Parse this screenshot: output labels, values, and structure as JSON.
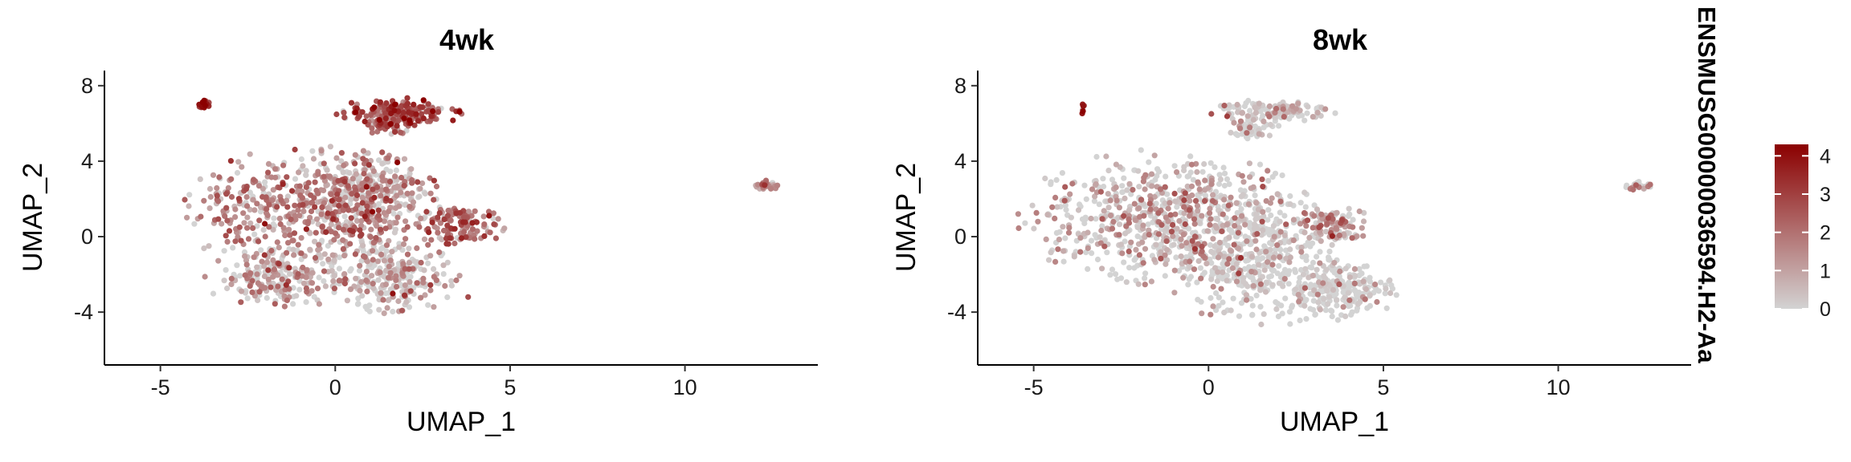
{
  "chart_data": [
    {
      "type": "scatter",
      "title": "4wk",
      "xlabel": "UMAP_1",
      "ylabel": "UMAP_2",
      "xlim": [
        -6.6,
        13.8
      ],
      "ylim": [
        -6.8,
        8.8
      ],
      "xticks": [
        -5,
        0,
        5,
        10
      ],
      "yticks": [
        -4,
        0,
        4,
        8
      ],
      "tick_labels_x": [
        "-5",
        "0",
        "5",
        "10"
      ],
      "tick_labels_y": [
        "-4",
        "0",
        "4",
        "8"
      ],
      "grid": false,
      "cluster_regions": [
        {
          "cx": -0.6,
          "cy": 1.4,
          "rx": 3.2,
          "ry": 2.8,
          "n": 620,
          "expr_mean": 1.5
        },
        {
          "cx": 1.6,
          "cy": -2.2,
          "rx": 1.6,
          "ry": 1.6,
          "n": 260,
          "expr_mean": 0.9
        },
        {
          "cx": -1.6,
          "cy": -2.2,
          "rx": 1.8,
          "ry": 1.3,
          "n": 200,
          "expr_mean": 1.1
        },
        {
          "cx": 1.2,
          "cy": 2.6,
          "rx": 1.4,
          "ry": 1.6,
          "n": 180,
          "expr_mean": 1.0
        },
        {
          "cx": 3.6,
          "cy": 0.6,
          "rx": 1.0,
          "ry": 0.9,
          "n": 120,
          "expr_mean": 2.0
        },
        {
          "cx": 1.9,
          "cy": 6.6,
          "rx": 1.5,
          "ry": 0.6,
          "n": 170,
          "expr_mean": 2.5
        },
        {
          "cx": 1.6,
          "cy": 6.0,
          "rx": 0.7,
          "ry": 0.6,
          "n": 60,
          "expr_mean": 2.3
        },
        {
          "cx": -3.75,
          "cy": 7.0,
          "rx": 0.12,
          "ry": 0.2,
          "n": 22,
          "expr_mean": 3.8
        },
        {
          "cx": 12.35,
          "cy": 2.7,
          "rx": 0.28,
          "ry": 0.22,
          "n": 30,
          "expr_mean": 1.6
        },
        {
          "cx": 3.8,
          "cy": -3.2,
          "rx": 0.02,
          "ry": 0.02,
          "n": 1,
          "expr_mean": 3.0
        }
      ]
    },
    {
      "type": "scatter",
      "title": "8wk",
      "xlabel": "UMAP_1",
      "ylabel": "UMAP_2",
      "xlim": [
        -6.6,
        13.8
      ],
      "ylim": [
        -6.8,
        8.8
      ],
      "xticks": [
        -5,
        0,
        5,
        10
      ],
      "yticks": [
        -4,
        0,
        4,
        8
      ],
      "tick_labels_x": [
        "-5",
        "0",
        "5",
        "10"
      ],
      "tick_labels_y": [
        "-4",
        "0",
        "4",
        "8"
      ],
      "grid": false,
      "cluster_regions": [
        {
          "cx": -1.2,
          "cy": 1.0,
          "rx": 3.4,
          "ry": 2.9,
          "n": 700,
          "expr_mean": 0.9
        },
        {
          "cx": 1.4,
          "cy": -1.2,
          "rx": 2.2,
          "ry": 3.0,
          "n": 420,
          "expr_mean": 0.4
        },
        {
          "cx": 3.8,
          "cy": -2.8,
          "rx": 1.3,
          "ry": 1.3,
          "n": 200,
          "expr_mean": 0.3
        },
        {
          "cx": 3.6,
          "cy": 0.6,
          "rx": 0.9,
          "ry": 0.8,
          "n": 110,
          "expr_mean": 1.4
        },
        {
          "cx": 1.8,
          "cy": 6.7,
          "rx": 1.5,
          "ry": 0.5,
          "n": 140,
          "expr_mean": 0.6
        },
        {
          "cx": 1.3,
          "cy": 5.8,
          "rx": 0.6,
          "ry": 0.5,
          "n": 50,
          "expr_mean": 0.5
        },
        {
          "cx": -3.6,
          "cy": 6.7,
          "rx": 0.06,
          "ry": 0.25,
          "n": 6,
          "expr_mean": 3.5
        },
        {
          "cx": 12.3,
          "cy": 2.7,
          "rx": 0.3,
          "ry": 0.2,
          "n": 30,
          "expr_mean": 0.7
        }
      ]
    }
  ],
  "legend": {
    "title": "ENSMUSG00000036594.H2-Aa",
    "type": "colorbar",
    "placement": "right",
    "min": 0,
    "max": 4.3,
    "ticks": [
      "0",
      "1",
      "2",
      "3",
      "4"
    ],
    "tick_values": [
      0,
      1,
      2,
      3,
      4
    ],
    "color_low": "#d3d3d3",
    "color_high": "#8b0000"
  }
}
